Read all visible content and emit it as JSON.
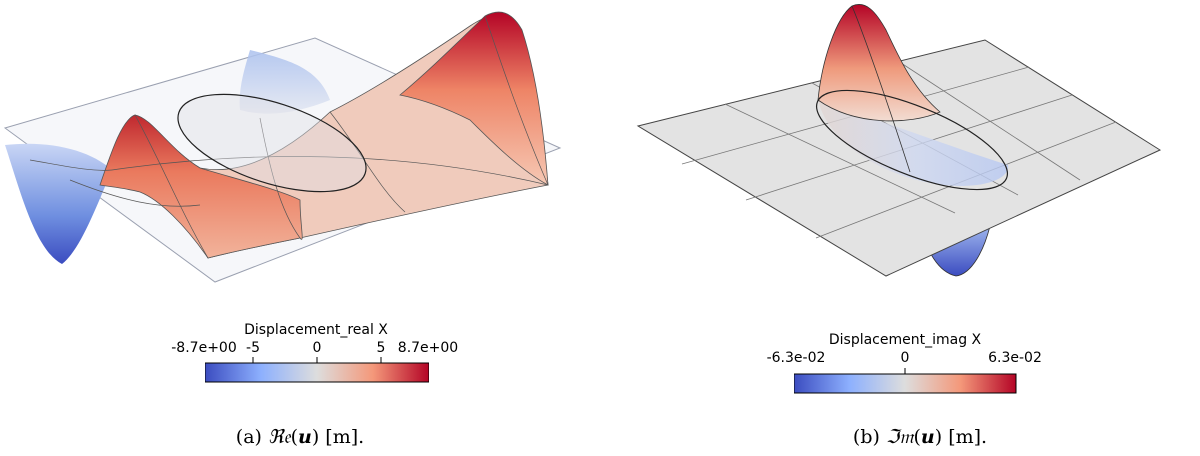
{
  "panels": [
    {
      "label": "(a)",
      "caption_op": "ℜ𝔢",
      "caption_var": "𝒖",
      "caption_unit": "[m].",
      "colorbar": {
        "title": "Displacement_real X",
        "ticks": [
          "-8.7e+00",
          "-5",
          "0",
          "5",
          "8.7e+00"
        ],
        "tick_values": [
          -8.7,
          -5,
          0,
          5,
          8.7
        ],
        "range": [
          -8.7,
          8.7
        ],
        "colormap": "Cool to Warm"
      }
    },
    {
      "label": "(b)",
      "caption_op": "ℑ𝔪",
      "caption_var": "𝒖",
      "caption_unit": "[m].",
      "colorbar": {
        "title": "Displacement_imag X",
        "ticks": [
          "-6.3e-02",
          "0",
          "6.3e-02"
        ],
        "tick_values": [
          -0.063,
          0,
          0.063
        ],
        "range": [
          -0.063,
          0.063
        ],
        "colormap": "Cool to Warm"
      }
    }
  ],
  "colors": {
    "cold": "#3b4cc0",
    "neutral": "#dddddd",
    "warm": "#b40426",
    "plate": "#e6e6e6",
    "edge": "#444444"
  }
}
